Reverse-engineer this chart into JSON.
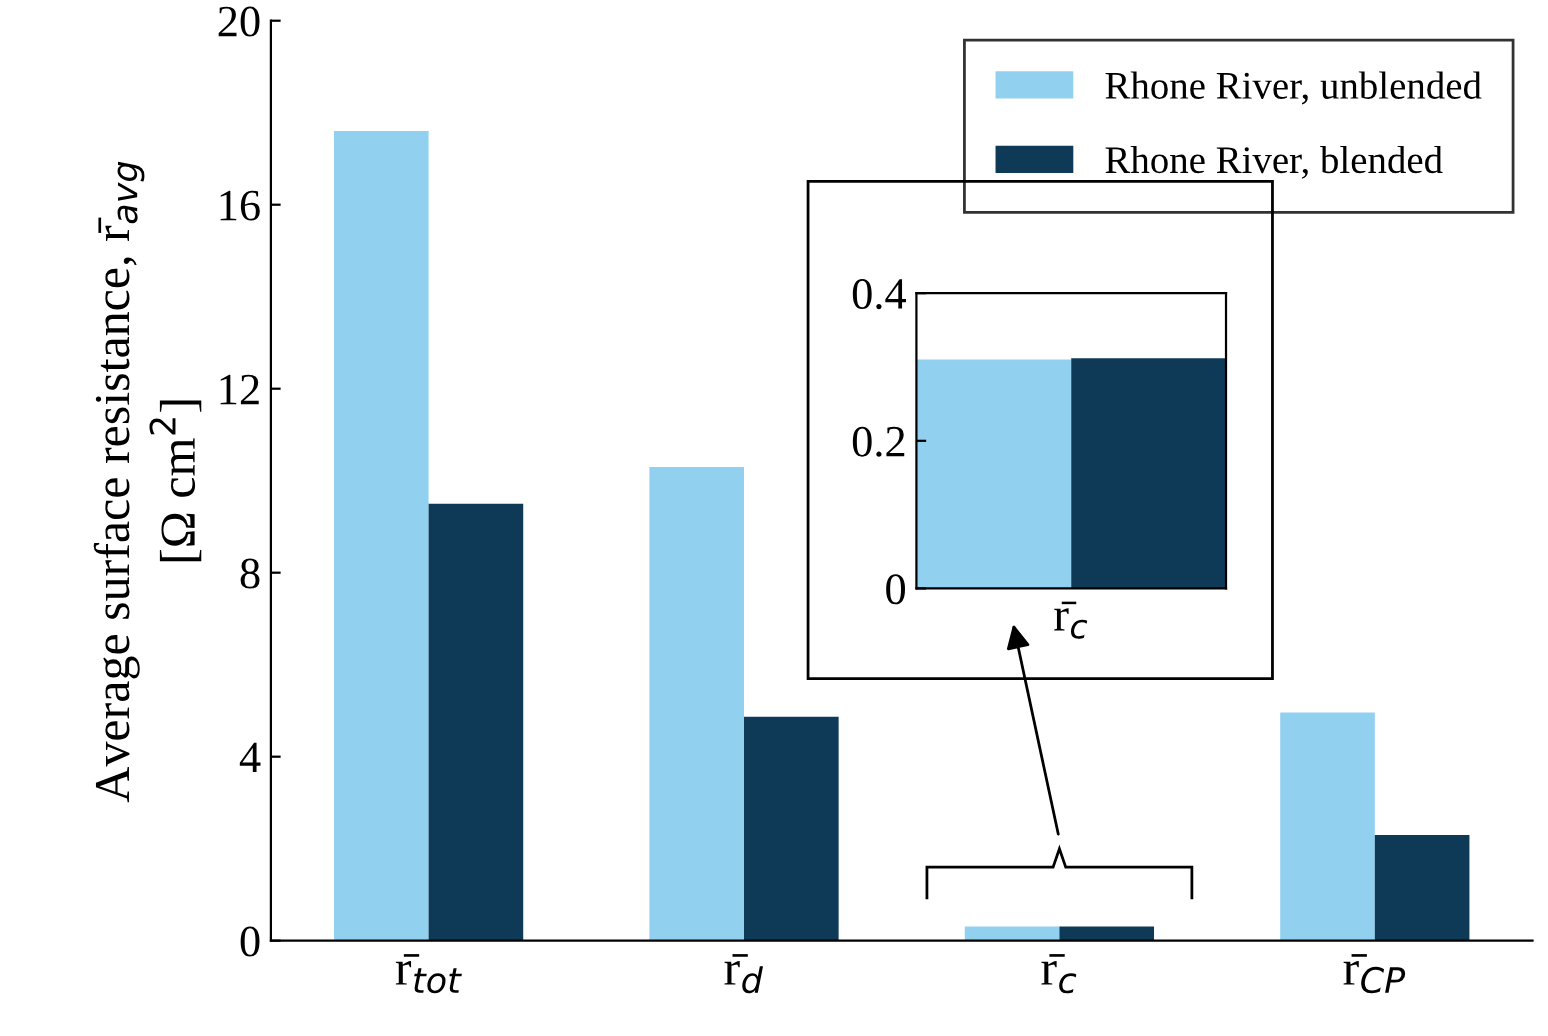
{
  "chart_data": [
    {
      "type": "bar",
      "ylabel": "Average surface resistance, r̄$_{avg}$\n[Ω cm$^{2}$]",
      "categories": [
        "r̄$_{tot}$",
        "r̄$_{d}$",
        "r̄$_{c}$",
        "r̄$_{CP}$"
      ],
      "series": [
        {
          "name": "Rhone River, unblended",
          "color": "#92d0f0",
          "values": [
            17.6,
            10.3,
            0.31,
            4.96
          ]
        },
        {
          "name": "Rhone River, blended",
          "color": "#0e3a58",
          "values": [
            9.5,
            4.87,
            0.31,
            2.3
          ]
        }
      ],
      "ylim": [
        0,
        20
      ],
      "yticks": [
        0,
        4,
        8,
        12,
        16,
        20
      ],
      "grid": false,
      "legend": "top right"
    },
    {
      "type": "bar",
      "categories": [
        "r̄$_{c}$"
      ],
      "series": [
        {
          "color": "#92d0f0",
          "values": [
            0.31
          ]
        },
        {
          "color": "#0e3a58",
          "values": [
            0.312
          ]
        }
      ],
      "ylim": [
        0,
        0.4
      ],
      "yticks": [
        0,
        0.2,
        0.4
      ],
      "grid": false
    }
  ]
}
